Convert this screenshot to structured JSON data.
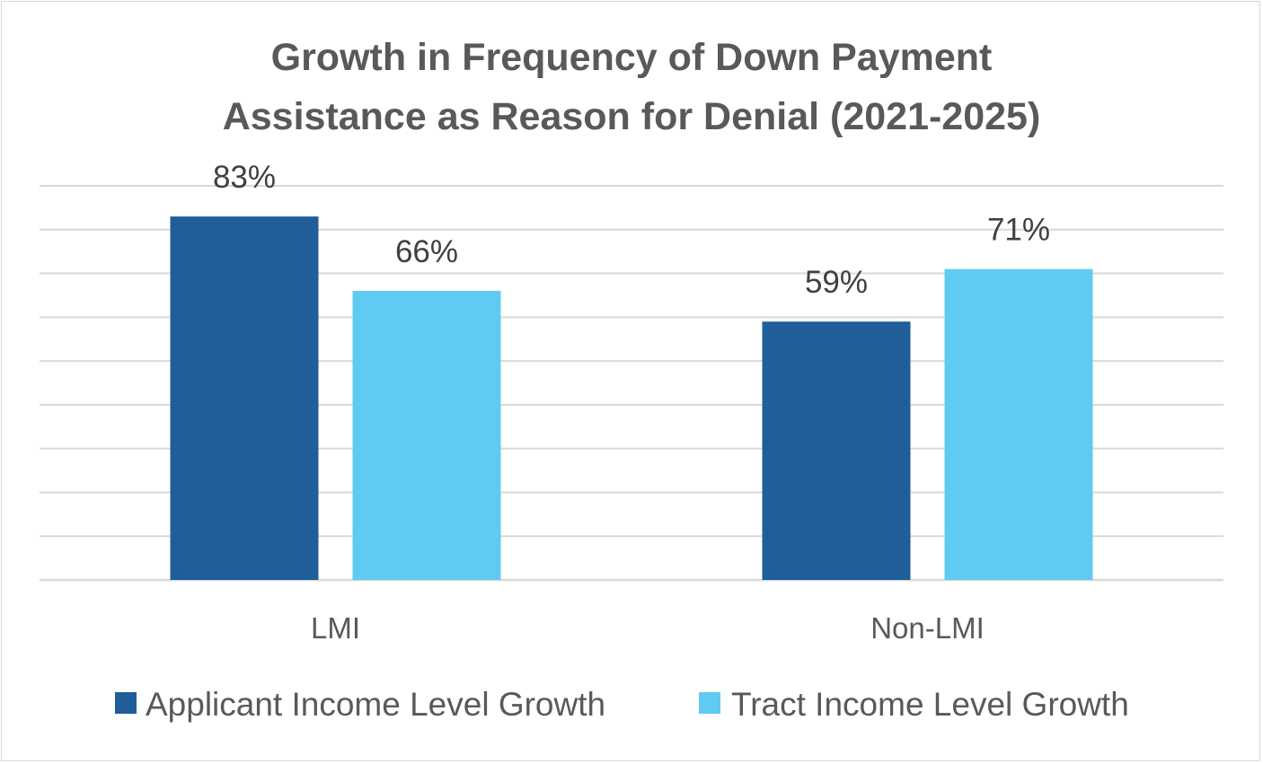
{
  "chart_data": {
    "type": "bar",
    "title_lines": [
      "Growth in Frequency of Down Payment",
      "Assistance as Reason for Denial (2021-2025)"
    ],
    "categories": [
      "LMI",
      "Non-LMI"
    ],
    "series": [
      {
        "name": "Applicant Income Level Growth",
        "values": [
          83,
          59
        ],
        "labels": [
          "83%",
          "59%"
        ],
        "color": "#1f5e99"
      },
      {
        "name": "Tract Income Level Growth",
        "values": [
          66,
          71
        ],
        "labels": [
          "66%",
          "71%"
        ],
        "color": "#5fcaf2"
      }
    ],
    "ylim": [
      0,
      90
    ],
    "grid": true,
    "gridline_color": "#d9d9d9",
    "legend_position": "bottom"
  }
}
